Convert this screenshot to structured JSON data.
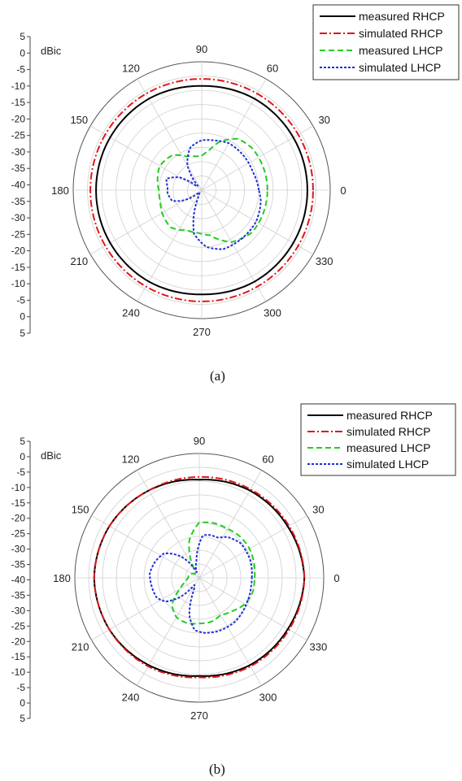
{
  "chart_data": [
    {
      "type": "polar",
      "caption": "(a)",
      "unit_label": "dBic",
      "radial_ticks": [
        "5",
        "0",
        "-5",
        "-10",
        "-15",
        "-20",
        "-25",
        "-30",
        "-35",
        "-40",
        "-35",
        "-30",
        "-25",
        "-20",
        "-15",
        "-10",
        "-5",
        "0",
        "5"
      ],
      "angle_labels": [
        "0",
        "30",
        "60",
        "90",
        "120",
        "150",
        "180",
        "210",
        "240",
        "270",
        "300",
        "330"
      ],
      "r_range": [
        -40,
        5
      ],
      "grid": true,
      "legend_position": "top-right",
      "series": [
        {
          "name": "measured RHCP",
          "color": "#000000",
          "style": "solid",
          "angles": [
            0,
            30,
            60,
            90,
            120,
            150,
            180,
            210,
            240,
            270,
            300,
            330,
            360
          ],
          "values": [
            -3,
            -3,
            -3,
            -3.5,
            -3,
            -3,
            -3,
            -3,
            -3,
            -3.5,
            -3,
            -3,
            -3
          ]
        },
        {
          "name": "simulated RHCP",
          "color": "#e0161b",
          "style": "dashdot",
          "angles": [
            0,
            30,
            60,
            90,
            120,
            150,
            180,
            210,
            240,
            270,
            300,
            330,
            360
          ],
          "values": [
            -1,
            -1,
            -1,
            -1,
            -1,
            -1,
            -1,
            -1,
            -1,
            -1,
            -1,
            -1,
            -1
          ]
        },
        {
          "name": "measured LHCP",
          "color": "#22cc22",
          "style": "dashed",
          "angles": [
            0,
            20,
            40,
            55,
            70,
            80,
            90,
            100,
            115,
            130,
            150,
            165,
            180,
            195,
            210,
            230,
            250,
            265,
            280,
            300,
            320,
            340,
            360
          ],
          "values": [
            -17,
            -17,
            -17,
            -18,
            -22,
            -26,
            -28,
            -28,
            -27,
            -24,
            -23,
            -24,
            -25,
            -25,
            -24,
            -23,
            -25,
            -25,
            -24,
            -19,
            -17,
            -17,
            -17
          ]
        },
        {
          "name": "simulated LHCP",
          "color": "#1f2fd6",
          "style": "dotted",
          "angles": [
            0,
            20,
            40,
            60,
            75,
            90,
            105,
            120,
            132,
            140,
            150,
            162,
            175,
            185,
            200,
            210,
            220,
            232,
            245,
            260,
            275,
            290,
            310,
            330,
            350,
            360
          ],
          "values": [
            -20,
            -21,
            -21,
            -21,
            -22,
            -22.5,
            -24.5,
            -30,
            -38,
            -38,
            -31,
            -27,
            -28,
            -28,
            -29,
            -33,
            -38,
            -39,
            -37,
            -24.5,
            -20,
            -18,
            -18,
            -18,
            -19,
            -20
          ]
        }
      ]
    },
    {
      "type": "polar",
      "caption": "(b)",
      "unit_label": "dBic",
      "radial_ticks": [
        "5",
        "0",
        "-5",
        "-10",
        "-15",
        "-20",
        "-25",
        "-30",
        "-35",
        "-40",
        "-35",
        "-30",
        "-25",
        "-20",
        "-15",
        "-10",
        "-5",
        "0",
        "5"
      ],
      "angle_labels": [
        "0",
        "30",
        "60",
        "90",
        "120",
        "150",
        "180",
        "210",
        "240",
        "270",
        "300",
        "330"
      ],
      "r_range": [
        -40,
        5
      ],
      "grid": true,
      "legend_position": "top-right",
      "series": [
        {
          "name": "measured RHCP",
          "color": "#000000",
          "style": "solid",
          "angles": [
            0,
            30,
            60,
            90,
            120,
            150,
            180,
            210,
            240,
            270,
            300,
            330,
            360
          ],
          "values": [
            -2,
            -3,
            -3.5,
            -4.5,
            -3.5,
            -2.5,
            -2,
            -2.5,
            -3.5,
            -4.5,
            -3.5,
            -3,
            -2
          ]
        },
        {
          "name": "simulated RHCP",
          "color": "#e0161b",
          "style": "dashdot",
          "angles": [
            0,
            30,
            60,
            90,
            120,
            150,
            180,
            210,
            240,
            270,
            300,
            330,
            360
          ],
          "values": [
            -2,
            -2.5,
            -3,
            -3.5,
            -3.5,
            -2.5,
            -2,
            -2.5,
            -3,
            -4,
            -3,
            -2.5,
            -2
          ]
        },
        {
          "name": "measured LHCP",
          "color": "#22cc22",
          "style": "dashed",
          "angles": [
            0,
            15,
            30,
            45,
            60,
            75,
            90,
            105,
            120,
            135,
            150,
            165,
            180,
            195,
            210,
            225,
            240,
            255,
            270,
            285,
            300,
            315,
            330,
            345,
            360
          ],
          "values": [
            -20,
            -19.5,
            -19,
            -19,
            -19.5,
            -19.5,
            -20,
            -26,
            -36,
            -38,
            -37,
            -36,
            -36,
            -35,
            -32,
            -26,
            -23.5,
            -23,
            -23.5,
            -23.5,
            -24.5,
            -23,
            -21,
            -20,
            -20
          ]
        },
        {
          "name": "simulated LHCP",
          "color": "#1f2fd6",
          "style": "dotted",
          "angles": [
            0,
            20,
            40,
            55,
            65,
            75,
            85,
            100,
            115,
            130,
            145,
            160,
            175,
            190,
            205,
            215,
            225,
            235,
            245,
            255,
            265,
            275,
            290,
            310,
            330,
            350,
            360
          ],
          "values": [
            -21,
            -20.5,
            -20.5,
            -22,
            -24,
            -24,
            -24.5,
            -34,
            -38,
            -30,
            -24.5,
            -23,
            -22,
            -22.5,
            -23,
            -25,
            -30,
            -37,
            -36,
            -26,
            -21,
            -20,
            -19.5,
            -19.5,
            -20.5,
            -21,
            -21
          ]
        }
      ]
    }
  ]
}
